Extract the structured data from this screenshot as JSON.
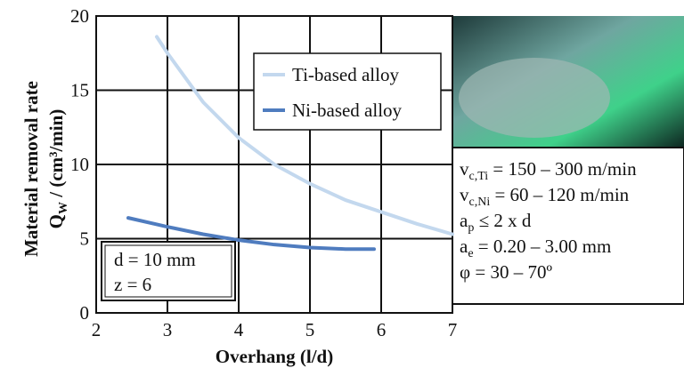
{
  "chart_data": {
    "type": "line",
    "ylabel": {
      "line1": "Material removal rate",
      "line2": {
        "main": "Q",
        "sub": "W",
        "rest": " / (cm³/min)"
      }
    },
    "xlabel": "Overhang (l/d)",
    "xlim": [
      2,
      7
    ],
    "xticks": [
      2,
      3,
      4,
      5,
      6,
      7
    ],
    "ylim": [
      0,
      20
    ],
    "yticks": [
      0,
      5,
      10,
      15,
      20
    ],
    "grid": true,
    "series": [
      {
        "name": "Ti-based alloy",
        "color": "#c3d8ee",
        "x": [
          2.85,
          3,
          3.5,
          4,
          4.5,
          5,
          5.5,
          6,
          6.5,
          7
        ],
        "values": [
          18.6,
          17.5,
          14.2,
          11.8,
          10.0,
          8.7,
          7.6,
          6.8,
          6.0,
          5.3
        ]
      },
      {
        "name": "Ni-based alloy",
        "color": "#4f7cbf",
        "x": [
          2.45,
          3,
          3.5,
          4,
          4.5,
          5,
          5.5,
          5.9
        ],
        "values": [
          6.4,
          5.8,
          5.3,
          4.9,
          4.6,
          4.4,
          4.3,
          4.3
        ]
      }
    ],
    "tool_params": [
      "d = 10 mm",
      "z = 6"
    ],
    "cutting_params": [
      {
        "main": "v",
        "sub": "c,Ti",
        "rest": " = 150 – 300 m/min"
      },
      {
        "main": "v",
        "sub": "c,Ni",
        "rest": " = 60 – 120 m/min"
      },
      {
        "main": "a",
        "sub": "p",
        "rest": " ≤ 2 x d"
      },
      {
        "main": "a",
        "sub": "e",
        "rest": " = 0.20 – 3.00 mm"
      },
      {
        "main": "φ = 30 – 70º",
        "sub": null,
        "rest": null
      }
    ]
  }
}
